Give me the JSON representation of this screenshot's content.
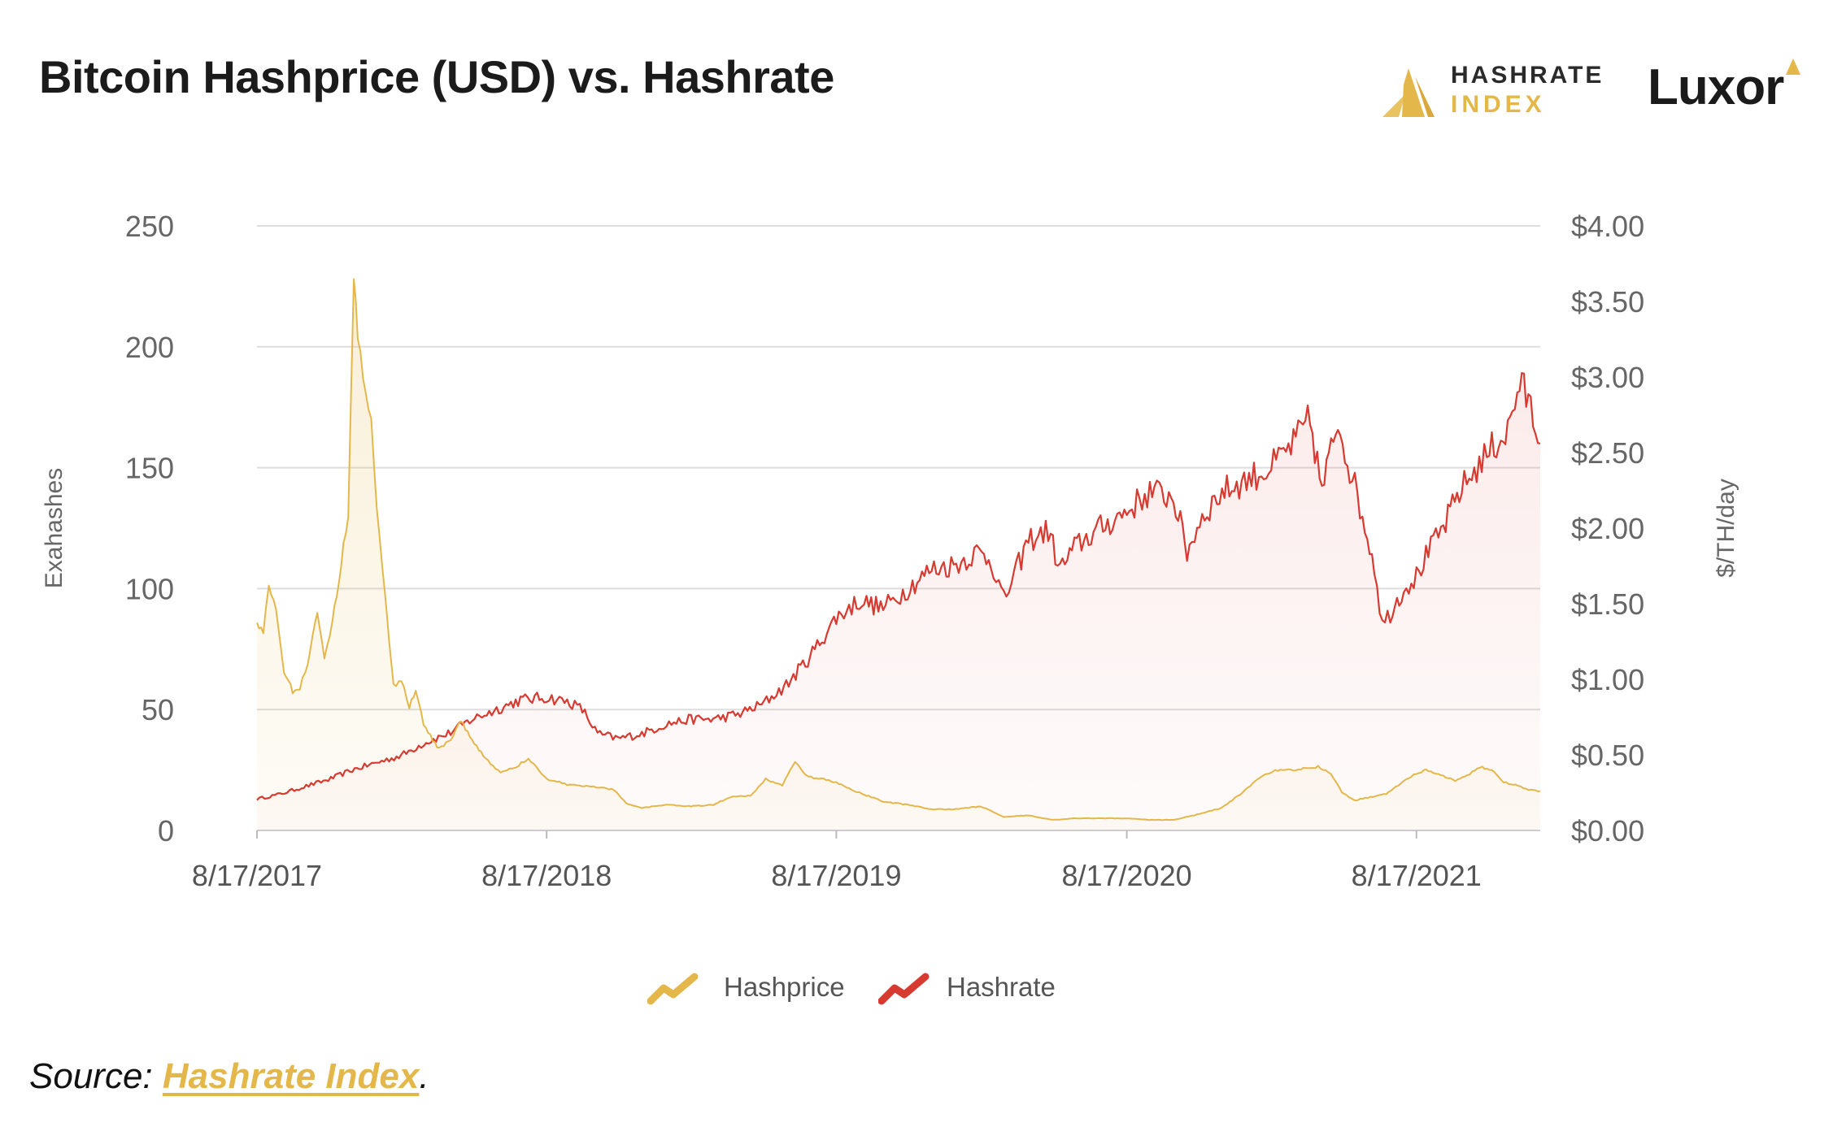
{
  "header": {
    "title": "Bitcoin Hashprice (USD) vs. Hashrate",
    "logo_hashrate_line1": "HASHRATE",
    "logo_hashrate_line2": "INDEX",
    "logo_luxor": "Luxor"
  },
  "legend": {
    "hashprice_label": "Hashprice",
    "hashrate_label": "Hashrate"
  },
  "source": {
    "prefix": "Source: ",
    "link_text": "Hashrate Index",
    "suffix": "."
  },
  "colors": {
    "hashprice": "#e4b74a",
    "hashrate": "#d63a31",
    "grid": "#dddddd",
    "axis_text": "#666666"
  },
  "chart_data": {
    "type": "line",
    "title": "Bitcoin Hashprice (USD) vs. Hashrate",
    "x_range": [
      "2017-08-17",
      "2022-01-20"
    ],
    "x_ticks": [
      "8/17/2017",
      "8/17/2018",
      "8/17/2019",
      "8/17/2020",
      "8/17/2021"
    ],
    "y_left": {
      "label": "Exahashes",
      "range": [
        0,
        250
      ],
      "ticks": [
        "0",
        "50",
        "100",
        "150",
        "200",
        "250"
      ]
    },
    "y_right": {
      "label": "$/TH/day",
      "range": [
        0,
        4
      ],
      "ticks": [
        "$0.00",
        "$0.50",
        "$1.00",
        "$1.50",
        "$2.00",
        "$2.50",
        "$3.00",
        "$3.50",
        "$4.00"
      ]
    },
    "grid": true,
    "legend_position": "bottom-center",
    "series": [
      {
        "name": "Hashprice",
        "axis": "right",
        "points": [
          [
            "2017-08-17",
            1.4
          ],
          [
            "2017-08-25",
            1.29
          ],
          [
            "2017-09-01",
            1.62
          ],
          [
            "2017-09-10",
            1.45
          ],
          [
            "2017-09-20",
            1.05
          ],
          [
            "2017-10-01",
            0.92
          ],
          [
            "2017-10-10",
            0.95
          ],
          [
            "2017-10-20",
            1.1
          ],
          [
            "2017-11-01",
            1.45
          ],
          [
            "2017-11-10",
            1.15
          ],
          [
            "2017-11-20",
            1.38
          ],
          [
            "2017-12-01",
            1.75
          ],
          [
            "2017-12-10",
            2.1
          ],
          [
            "2017-12-17",
            3.7
          ],
          [
            "2017-12-22",
            3.3
          ],
          [
            "2018-01-01",
            2.9
          ],
          [
            "2018-01-08",
            2.75
          ],
          [
            "2018-01-15",
            2.1
          ],
          [
            "2018-01-25",
            1.6
          ],
          [
            "2018-02-05",
            0.95
          ],
          [
            "2018-02-15",
            1.0
          ],
          [
            "2018-02-25",
            0.82
          ],
          [
            "2018-03-05",
            0.92
          ],
          [
            "2018-03-15",
            0.7
          ],
          [
            "2018-04-01",
            0.55
          ],
          [
            "2018-04-15",
            0.58
          ],
          [
            "2018-05-01",
            0.72
          ],
          [
            "2018-05-15",
            0.6
          ],
          [
            "2018-06-01",
            0.48
          ],
          [
            "2018-06-20",
            0.38
          ],
          [
            "2018-07-10",
            0.42
          ],
          [
            "2018-07-25",
            0.48
          ],
          [
            "2018-08-17",
            0.34
          ],
          [
            "2018-09-15",
            0.3
          ],
          [
            "2018-10-15",
            0.29
          ],
          [
            "2018-11-10",
            0.27
          ],
          [
            "2018-11-25",
            0.18
          ],
          [
            "2018-12-15",
            0.15
          ],
          [
            "2019-01-15",
            0.17
          ],
          [
            "2019-02-15",
            0.16
          ],
          [
            "2019-03-15",
            0.17
          ],
          [
            "2019-04-05",
            0.22
          ],
          [
            "2019-05-01",
            0.23
          ],
          [
            "2019-05-20",
            0.34
          ],
          [
            "2019-06-10",
            0.3
          ],
          [
            "2019-06-26",
            0.46
          ],
          [
            "2019-07-10",
            0.36
          ],
          [
            "2019-08-17",
            0.32
          ],
          [
            "2019-09-15",
            0.25
          ],
          [
            "2019-10-15",
            0.19
          ],
          [
            "2019-11-15",
            0.17
          ],
          [
            "2019-12-15",
            0.14
          ],
          [
            "2020-01-15",
            0.14
          ],
          [
            "2020-02-15",
            0.16
          ],
          [
            "2020-03-15",
            0.09
          ],
          [
            "2020-04-15",
            0.1
          ],
          [
            "2020-05-15",
            0.07
          ],
          [
            "2020-06-15",
            0.08
          ],
          [
            "2020-07-15",
            0.08
          ],
          [
            "2020-08-17",
            0.08
          ],
          [
            "2020-09-15",
            0.07
          ],
          [
            "2020-10-15",
            0.07
          ],
          [
            "2020-11-10",
            0.1
          ],
          [
            "2020-12-15",
            0.15
          ],
          [
            "2021-01-10",
            0.25
          ],
          [
            "2021-02-01",
            0.35
          ],
          [
            "2021-02-20",
            0.4
          ],
          [
            "2021-03-15",
            0.4
          ],
          [
            "2021-04-15",
            0.42
          ],
          [
            "2021-05-01",
            0.38
          ],
          [
            "2021-05-15",
            0.25
          ],
          [
            "2021-06-01",
            0.2
          ],
          [
            "2021-06-20",
            0.22
          ],
          [
            "2021-07-10",
            0.24
          ],
          [
            "2021-07-25",
            0.3
          ],
          [
            "2021-08-17",
            0.38
          ],
          [
            "2021-09-01",
            0.4
          ],
          [
            "2021-09-20",
            0.36
          ],
          [
            "2021-10-05",
            0.33
          ],
          [
            "2021-10-20",
            0.36
          ],
          [
            "2021-11-05",
            0.42
          ],
          [
            "2021-11-20",
            0.4
          ],
          [
            "2021-12-05",
            0.32
          ],
          [
            "2021-12-20",
            0.3
          ],
          [
            "2022-01-05",
            0.27
          ],
          [
            "2022-01-20",
            0.26
          ]
        ]
      },
      {
        "name": "Hashrate",
        "axis": "left",
        "points": [
          [
            "2017-08-17",
            13
          ],
          [
            "2017-09-15",
            15
          ],
          [
            "2017-10-15",
            18
          ],
          [
            "2017-11-15",
            21
          ],
          [
            "2017-12-15",
            25
          ],
          [
            "2018-01-15",
            28
          ],
          [
            "2018-02-15",
            31
          ],
          [
            "2018-03-15",
            36
          ],
          [
            "2018-04-15",
            40
          ],
          [
            "2018-05-15",
            46
          ],
          [
            "2018-06-15",
            50
          ],
          [
            "2018-07-15",
            54
          ],
          [
            "2018-08-17",
            55
          ],
          [
            "2018-09-15",
            53
          ],
          [
            "2018-10-01",
            50
          ],
          [
            "2018-10-20",
            40
          ],
          [
            "2018-11-15",
            38
          ],
          [
            "2018-12-15",
            40
          ],
          [
            "2019-01-15",
            44
          ],
          [
            "2019-02-15",
            46
          ],
          [
            "2019-03-15",
            46
          ],
          [
            "2019-04-15",
            48
          ],
          [
            "2019-05-15",
            52
          ],
          [
            "2019-06-15",
            60
          ],
          [
            "2019-07-15",
            72
          ],
          [
            "2019-08-17",
            88
          ],
          [
            "2019-09-15",
            95
          ],
          [
            "2019-10-15",
            92
          ],
          [
            "2019-11-15",
            100
          ],
          [
            "2019-12-15",
            108
          ],
          [
            "2020-01-15",
            110
          ],
          [
            "2020-02-10",
            115
          ],
          [
            "2020-02-28",
            112
          ],
          [
            "2020-03-15",
            95
          ],
          [
            "2020-03-28",
            105
          ],
          [
            "2020-04-15",
            120
          ],
          [
            "2020-05-10",
            124
          ],
          [
            "2020-05-25",
            108
          ],
          [
            "2020-06-15",
            118
          ],
          [
            "2020-07-15",
            125
          ],
          [
            "2020-08-17",
            132
          ],
          [
            "2020-09-15",
            140
          ],
          [
            "2020-10-15",
            138
          ],
          [
            "2020-11-01",
            115
          ],
          [
            "2020-11-20",
            130
          ],
          [
            "2020-12-15",
            140
          ],
          [
            "2021-01-15",
            145
          ],
          [
            "2021-02-15",
            150
          ],
          [
            "2021-03-15",
            160
          ],
          [
            "2021-04-05",
            170
          ],
          [
            "2021-04-20",
            140
          ],
          [
            "2021-05-10",
            170
          ],
          [
            "2021-05-25",
            150
          ],
          [
            "2021-06-10",
            130
          ],
          [
            "2021-06-25",
            110
          ],
          [
            "2021-07-05",
            85
          ],
          [
            "2021-07-15",
            90
          ],
          [
            "2021-08-01",
            100
          ],
          [
            "2021-08-17",
            105
          ],
          [
            "2021-09-01",
            115
          ],
          [
            "2021-09-20",
            125
          ],
          [
            "2021-10-10",
            140
          ],
          [
            "2021-11-01",
            150
          ],
          [
            "2021-11-20",
            158
          ],
          [
            "2021-12-10",
            165
          ],
          [
            "2021-12-25",
            185
          ],
          [
            "2022-01-05",
            178
          ],
          [
            "2022-01-20",
            160
          ]
        ]
      }
    ]
  }
}
